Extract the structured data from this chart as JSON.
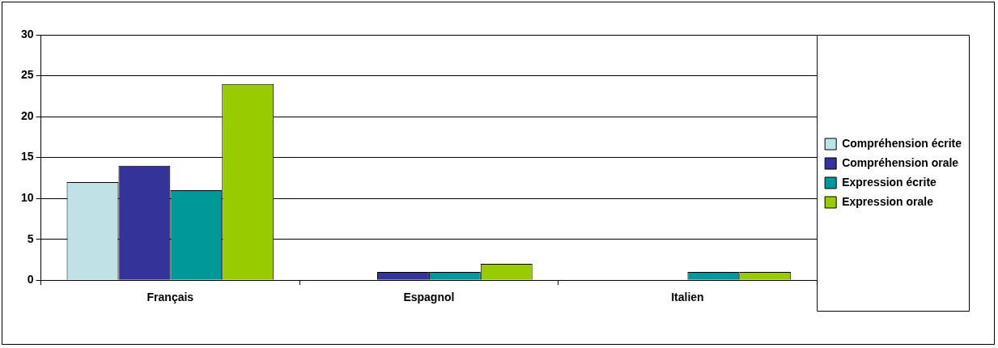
{
  "chart_data": {
    "type": "bar",
    "categories": [
      "Français",
      "Espagnol",
      "Italien"
    ],
    "series": [
      {
        "name": "Compréhension écrite",
        "color": "#c0e2e6",
        "values": [
          12,
          0,
          0
        ]
      },
      {
        "name": "Compréhension orale",
        "color": "#333399",
        "values": [
          14,
          1,
          0
        ]
      },
      {
        "name": "Expression écrite",
        "color": "#009999",
        "values": [
          11,
          1,
          1
        ]
      },
      {
        "name": "Expression orale",
        "color": "#99cc00",
        "values": [
          24,
          2,
          1
        ]
      }
    ],
    "ylim": [
      0,
      30
    ],
    "yticks": [
      0,
      5,
      10,
      15,
      20,
      25,
      30
    ],
    "grid": "y",
    "legend": "right"
  }
}
